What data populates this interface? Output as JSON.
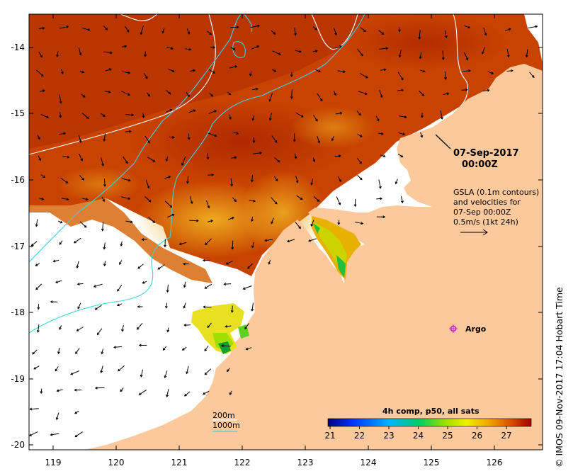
{
  "map": {
    "timestamp_line1": "07-Sep-2017",
    "timestamp_line2": "00:00Z",
    "gsla_note": [
      "GSLA (0.1m contours)",
      "and velocities for",
      "07-Sep 00:00Z",
      "0.5m/s (1kt 24h)"
    ],
    "argo_label": "Argo",
    "depth_legend": [
      "200m",
      "1000m"
    ],
    "colorbar_title": "4h comp, p50, all sats",
    "colorbar_ticks": [
      "21",
      "22",
      "23",
      "24",
      "25",
      "26",
      "27"
    ],
    "credit": "© IMOS 09-Nov-2017 17:04 Hobart Time",
    "x_ticks": [
      "119",
      "120",
      "121",
      "122",
      "123",
      "124",
      "125",
      "126"
    ],
    "y_ticks": [
      "-14",
      "-15",
      "-16",
      "-17",
      "-18",
      "-19",
      "-20"
    ],
    "colors": {
      "land": "#fcc99c",
      "sst_warm": "#c33a00",
      "sst_cool": "#e39a12",
      "isobath_200m": "#ffffff",
      "isobath_1000m": "#36d6d6",
      "argo": "#cc33cc"
    }
  }
}
